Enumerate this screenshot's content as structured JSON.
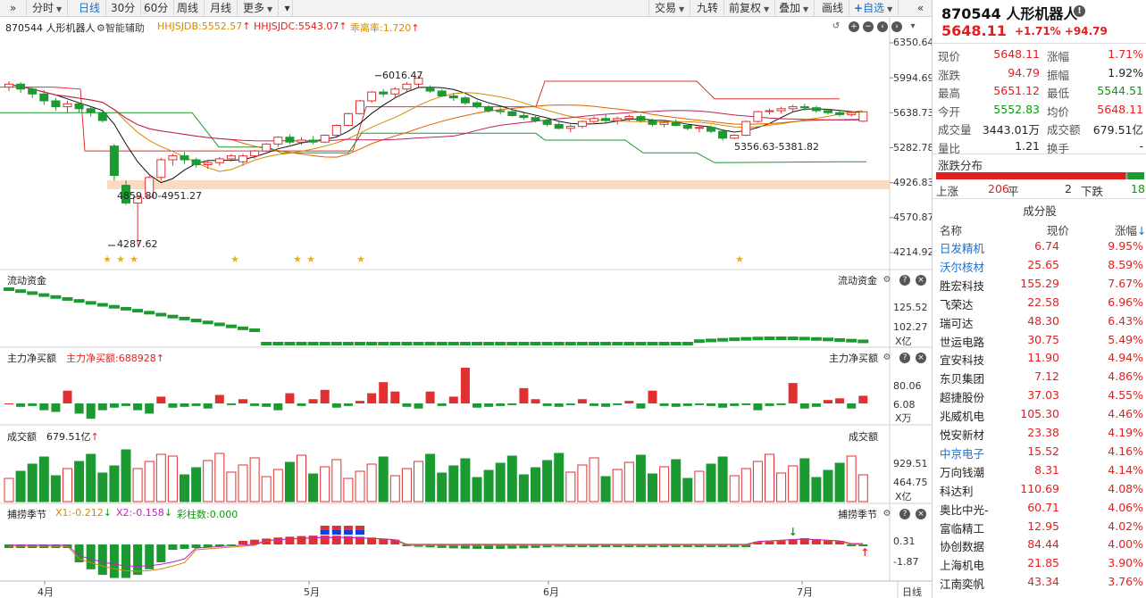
{
  "toolbar": {
    "left_buttons": [
      {
        "label": "分时",
        "caret": true
      },
      {
        "label": "日线",
        "active": true
      },
      {
        "label": "30分"
      },
      {
        "label": "60分"
      },
      {
        "label": "周线"
      },
      {
        "label": "月线"
      },
      {
        "label": "更多",
        "caret": true
      }
    ],
    "right_buttons": [
      {
        "label": "交易",
        "caret": true
      },
      {
        "label": "九转"
      },
      {
        "label": "前复权",
        "caret": true
      },
      {
        "label": "叠加",
        "caret": true
      },
      {
        "label": "画线"
      },
      {
        "label": "自选",
        "caret": true,
        "plus": true
      }
    ]
  },
  "main_panel": {
    "stock_label": "870544 人形机器人",
    "assist_label": "智能辅助",
    "ind1": "HHJSJDB:5552.57",
    "ind2": "HHJSJDC:5543.07",
    "ind3": "乖离率:1.720",
    "ind1_color": "#d48a00",
    "ind2_color": "#e02020",
    "ind3_color": "#d48a00"
  },
  "price_axis": [
    "6350.64",
    "5994.69",
    "5638.73",
    "5282.78",
    "4926.83",
    "4570.87",
    "4214.92"
  ],
  "annotations": {
    "high_label": "6016.47",
    "low_label": "4287.62",
    "zone1_label": "4859.80-4951.27",
    "zone2_label": "5356.63-5381.82"
  },
  "flow_panel": {
    "title": "流动资金",
    "title_right": "流动资金",
    "axis": [
      "125.52",
      "102.27"
    ],
    "unit": "X亿"
  },
  "main_buy_panel": {
    "title": "主力净买额",
    "value_label": "主力净买额:688928",
    "title_right": "主力净买额",
    "axis": [
      "80.06",
      "6.08"
    ],
    "unit": "X万"
  },
  "volume_panel": {
    "title": "成交额",
    "value_label": "679.51亿",
    "title_right": "成交额",
    "axis": [
      "929.51",
      "464.75"
    ],
    "unit": "X亿"
  },
  "season_panel": {
    "title": "捕捞季节",
    "x1": "X1:-0.212",
    "x2": "X2:-0.158",
    "bars": "彩柱数:0.000",
    "title_right": "捕捞季节",
    "axis": [
      "0.31",
      "-1.87"
    ]
  },
  "x_axis": [
    "4月",
    "5月",
    "6月",
    "7月"
  ],
  "period_label": "日线",
  "quote": {
    "code_name": "870544 人形机器人",
    "price": "5648.11",
    "change": "+1.71% +94.79",
    "rows": [
      {
        "k1": "现价",
        "v1": "5648.11",
        "c1": "red",
        "k2": "涨幅",
        "v2": "1.71%",
        "c2": "red"
      },
      {
        "k1": "涨跌",
        "v1": "94.79",
        "c1": "red",
        "k2": "振幅",
        "v2": "1.92%",
        "c2": "black"
      },
      {
        "k1": "最高",
        "v1": "5651.12",
        "c1": "red",
        "k2": "最低",
        "v2": "5544.51",
        "c2": "green"
      },
      {
        "k1": "今开",
        "v1": "5552.83",
        "c1": "green",
        "k2": "均价",
        "v2": "5648.11",
        "c2": "red"
      },
      {
        "k1": "成交量",
        "v1": "3443.01万",
        "c1": "black",
        "k2": "成交额",
        "v2": "679.51亿",
        "c2": "black"
      },
      {
        "k1": "量比",
        "v1": "1.21",
        "c1": "black",
        "k2": "换手",
        "v2": "-",
        "c2": "black"
      }
    ]
  },
  "distribution": {
    "title": "涨跌分布",
    "up_label": "上涨",
    "up_count": 206,
    "flat_label": "平",
    "flat_count": 2,
    "down_label": "下跌",
    "down_count": 18
  },
  "components": {
    "title": "成分股",
    "head_name": "名称",
    "head_price": "现价",
    "head_chg": "涨幅",
    "rows": [
      {
        "name": "日发精机",
        "price": "6.74",
        "chg": "9.95%",
        "blue": true
      },
      {
        "name": "沃尔核材",
        "price": "25.65",
        "chg": "8.59%",
        "blue": true
      },
      {
        "name": "胜宏科技",
        "price": "155.29",
        "chg": "7.67%"
      },
      {
        "name": "飞荣达",
        "price": "22.58",
        "chg": "6.96%"
      },
      {
        "name": "瑞可达",
        "price": "48.30",
        "chg": "6.43%"
      },
      {
        "name": "世运电路",
        "price": "30.75",
        "chg": "5.49%"
      },
      {
        "name": "宜安科技",
        "price": "11.90",
        "chg": "4.94%"
      },
      {
        "name": "东贝集团",
        "price": "7.12",
        "chg": "4.86%"
      },
      {
        "name": "超捷股份",
        "price": "37.03",
        "chg": "4.55%"
      },
      {
        "name": "兆威机电",
        "price": "105.30",
        "chg": "4.46%"
      },
      {
        "name": "悦安新材",
        "price": "23.38",
        "chg": "4.19%"
      },
      {
        "name": "中京电子",
        "price": "15.52",
        "chg": "4.16%",
        "blue": true
      },
      {
        "name": "万向钱潮",
        "price": "8.31",
        "chg": "4.14%"
      },
      {
        "name": "科达利",
        "price": "110.69",
        "chg": "4.08%"
      },
      {
        "name": "奥比中光-",
        "price": "60.71",
        "chg": "4.06%"
      },
      {
        "name": "富临精工",
        "price": "12.95",
        "chg": "4.02%"
      },
      {
        "name": "协创数据",
        "price": "84.44",
        "chg": "4.00%"
      },
      {
        "name": "上海机电",
        "price": "21.85",
        "chg": "3.90%"
      },
      {
        "name": "江南奕帆",
        "price": "43.34",
        "chg": "3.76%"
      }
    ]
  },
  "chart_data": {
    "type": "candlestick",
    "ylim": [
      4214.92,
      6350.64
    ],
    "candles": [
      [
        5900,
        5960,
        5860,
        5930
      ],
      [
        5930,
        5950,
        5840,
        5880
      ],
      [
        5880,
        5900,
        5790,
        5830
      ],
      [
        5830,
        5870,
        5720,
        5760
      ],
      [
        5760,
        5790,
        5660,
        5700
      ],
      [
        5700,
        5760,
        5640,
        5730
      ],
      [
        5730,
        5740,
        5640,
        5680
      ],
      [
        5680,
        5700,
        5600,
        5640
      ],
      [
        5640,
        5660,
        5540,
        5560
      ],
      [
        5300,
        5320,
        4950,
        5000
      ],
      [
        4900,
        4950,
        4700,
        4720
      ],
      [
        4720,
        4800,
        4287.62,
        4780
      ],
      [
        4780,
        5000,
        4760,
        4980
      ],
      [
        4980,
        5180,
        4950,
        5160
      ],
      [
        5160,
        5220,
        5100,
        5200
      ],
      [
        5200,
        5240,
        5120,
        5160
      ],
      [
        5160,
        5180,
        5080,
        5110
      ],
      [
        5110,
        5150,
        5070,
        5130
      ],
      [
        5130,
        5190,
        5100,
        5170
      ],
      [
        5170,
        5220,
        5140,
        5200
      ],
      [
        5140,
        5220,
        5100,
        5200
      ],
      [
        5200,
        5260,
        5170,
        5250
      ],
      [
        5250,
        5330,
        5240,
        5320
      ],
      [
        5320,
        5400,
        5290,
        5390
      ],
      [
        5390,
        5420,
        5320,
        5340
      ],
      [
        5340,
        5390,
        5310,
        5360
      ],
      [
        5360,
        5400,
        5320,
        5340
      ],
      [
        5340,
        5420,
        5330,
        5410
      ],
      [
        5410,
        5520,
        5400,
        5510
      ],
      [
        5510,
        5640,
        5500,
        5630
      ],
      [
        5630,
        5770,
        5620,
        5760
      ],
      [
        5760,
        5860,
        5740,
        5850
      ],
      [
        5850,
        5880,
        5800,
        5830
      ],
      [
        5830,
        5900,
        5790,
        5880
      ],
      [
        5880,
        5950,
        5850,
        5930
      ],
      [
        5930,
        6016.47,
        5900,
        5990
      ],
      [
        5900,
        5920,
        5840,
        5860
      ],
      [
        5860,
        5880,
        5800,
        5810
      ],
      [
        5810,
        5840,
        5760,
        5790
      ],
      [
        5790,
        5810,
        5720,
        5740
      ],
      [
        5740,
        5760,
        5680,
        5700
      ],
      [
        5700,
        5720,
        5640,
        5660
      ],
      [
        5660,
        5690,
        5620,
        5650
      ],
      [
        5650,
        5670,
        5600,
        5610
      ],
      [
        5610,
        5640,
        5570,
        5590
      ],
      [
        5590,
        5620,
        5540,
        5560
      ],
      [
        5560,
        5590,
        5500,
        5520
      ],
      [
        5520,
        5560,
        5470,
        5480
      ],
      [
        5480,
        5520,
        5440,
        5500
      ],
      [
        5500,
        5560,
        5480,
        5550
      ],
      [
        5550,
        5600,
        5520,
        5580
      ],
      [
        5580,
        5620,
        5540,
        5560
      ],
      [
        5560,
        5600,
        5520,
        5580
      ],
      [
        5580,
        5620,
        5550,
        5600
      ],
      [
        5600,
        5620,
        5540,
        5560
      ],
      [
        5560,
        5580,
        5500,
        5520
      ],
      [
        5520,
        5560,
        5490,
        5540
      ],
      [
        5540,
        5570,
        5500,
        5510
      ],
      [
        5510,
        5530,
        5460,
        5480
      ],
      [
        5480,
        5510,
        5440,
        5490
      ],
      [
        5490,
        5510,
        5430,
        5450
      ],
      [
        5450,
        5470,
        5356.63,
        5380
      ],
      [
        5380,
        5420,
        5370,
        5410
      ],
      [
        5410,
        5560,
        5400,
        5550
      ],
      [
        5550,
        5660,
        5540,
        5650
      ],
      [
        5650,
        5680,
        5620,
        5660
      ],
      [
        5660,
        5700,
        5630,
        5680
      ],
      [
        5680,
        5720,
        5650,
        5700
      ],
      [
        5700,
        5730,
        5660,
        5690
      ],
      [
        5690,
        5710,
        5640,
        5660
      ],
      [
        5660,
        5680,
        5620,
        5640
      ],
      [
        5640,
        5670,
        5600,
        5620
      ],
      [
        5620,
        5660,
        5600,
        5640
      ],
      [
        5552.83,
        5651.12,
        5544.51,
        5648.11
      ]
    ]
  }
}
